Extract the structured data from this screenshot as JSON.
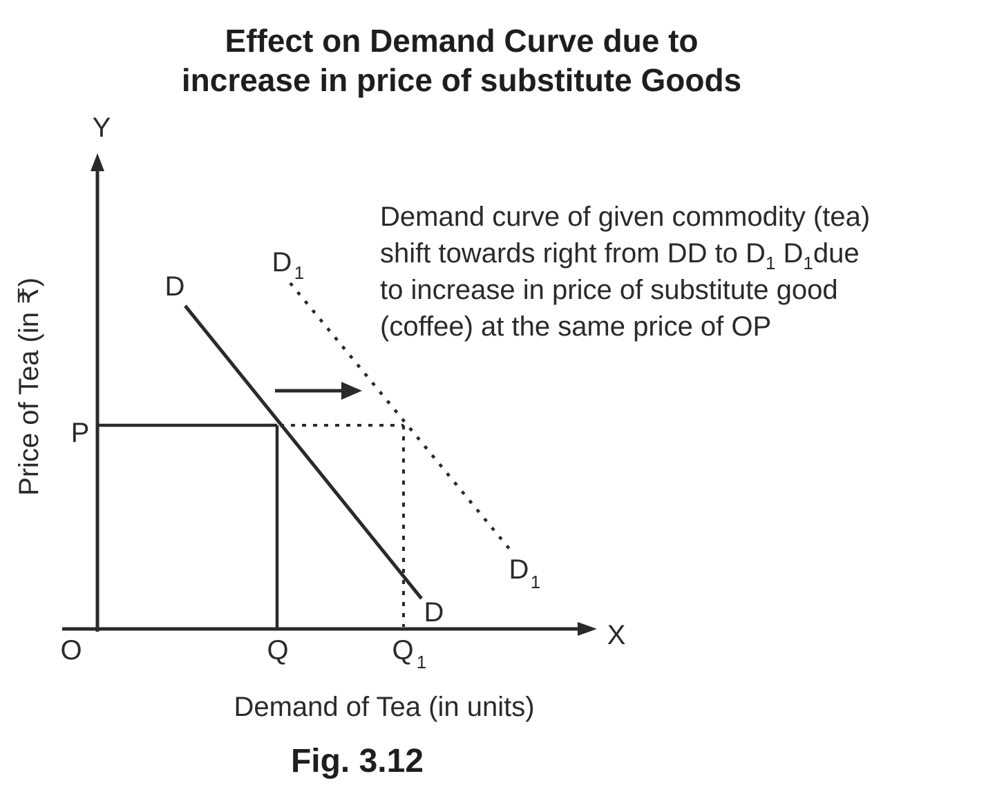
{
  "title": {
    "line1": "Effect on Demand Curve due to",
    "line2": "increase in price of substitute Goods"
  },
  "axes": {
    "y_letter": "Y",
    "x_letter": "X",
    "origin": "O",
    "y_title": "Price of Tea (in ₹)",
    "x_title": "Demand of Tea (in units)"
  },
  "points": {
    "price": "P",
    "qty": "Q",
    "qty1_main": "Q",
    "qty1_sub": "1"
  },
  "curves": {
    "dd_top": "D",
    "dd_bottom": "D",
    "d1_top_main": "D",
    "d1_top_sub": "1",
    "d1_bottom_main": "D",
    "d1_bottom_sub": "1"
  },
  "note": {
    "line1": "Demand curve of given commodity (tea)",
    "line2_a": "shift towards right from DD to D",
    "line2_sub1": "1",
    "line2_b": " D",
    "line2_sub2": "1",
    "line2_c": "due",
    "line3": "to increase in price of substitute good",
    "line4": "(coffee) at the same price of OP"
  },
  "caption": "Fig. 3.12"
}
